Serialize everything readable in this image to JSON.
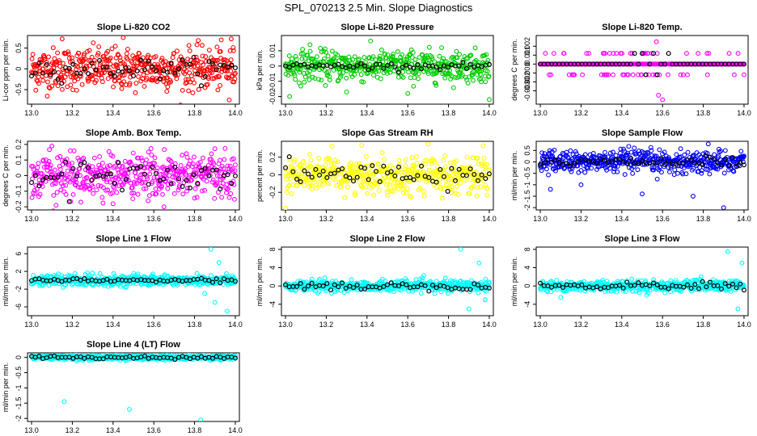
{
  "title": "SPL_070213  2.5 Min. Slope Diagnostics",
  "chart_data": [
    {
      "type": "scatter",
      "title": "Slope Li-820 CO2",
      "ylabel": "Li-cor ppm per min.",
      "color": "#ff0000",
      "xlim": [
        12.98,
        14.02
      ],
      "ylim": [
        -0.85,
        0.8
      ],
      "xticks": [
        13.0,
        13.2,
        13.4,
        13.6,
        13.8,
        14.0
      ],
      "yticks": [
        -0.5,
        0.0,
        0.5
      ],
      "spread": 0.25,
      "outliers": [
        [
          13.15,
          0.72
        ],
        [
          13.45,
          0.75
        ],
        [
          13.98,
          0.72
        ],
        [
          13.97,
          -0.75
        ]
      ],
      "black_spread": 0.12
    },
    {
      "type": "scatter",
      "title": "Slope Li-820 Pressure",
      "ylabel": "kPa per min.",
      "color": "#00cc00",
      "xlim": [
        12.98,
        14.02
      ],
      "ylim": [
        -0.025,
        0.02
      ],
      "xticks": [
        13.0,
        13.2,
        13.4,
        13.6,
        13.8,
        14.0
      ],
      "yticks": [
        -0.02,
        -0.01,
        0.0,
        0.01
      ],
      "spread": 0.005,
      "outliers": [
        [
          13.12,
          0.014
        ],
        [
          13.02,
          -0.02
        ],
        [
          13.3,
          -0.017
        ],
        [
          13.6,
          -0.018
        ],
        [
          14.0,
          -0.022
        ]
      ],
      "black_spread": 0.001
    },
    {
      "type": "scatter",
      "title": "Slope Li-820 Temp.",
      "ylabel": "degrees C per min.",
      "color": "#ff00ff",
      "xlim": [
        12.98,
        14.02
      ],
      "ylim": [
        -0.0045,
        0.0032
      ],
      "xticks": [
        13.0,
        13.2,
        13.4,
        13.6,
        13.8,
        14.0
      ],
      "yticks": [
        -0.003,
        -0.002,
        -0.001,
        0.0,
        0.001,
        0.002
      ],
      "spread": 0.0,
      "levels": [
        0.0,
        0.0,
        0.0,
        0.0,
        0.0,
        0.0,
        0.0012,
        -0.0012
      ],
      "outliers": [
        [
          13.57,
          0.0025
        ],
        [
          13.58,
          -0.0035
        ],
        [
          13.6,
          -0.004
        ]
      ],
      "black_spread": 0.0
    },
    {
      "type": "scatter",
      "title": "Slope Amb. Box Temp.",
      "ylabel": "degrees C per min.",
      "color": "#ff00ff",
      "xlim": [
        12.98,
        14.02
      ],
      "ylim": [
        -0.22,
        0.22
      ],
      "xticks": [
        13.0,
        13.2,
        13.4,
        13.6,
        13.8,
        14.0
      ],
      "yticks": [
        -0.2,
        -0.1,
        0.0,
        0.1,
        0.2
      ],
      "spread": 0.07,
      "outliers": [
        [
          13.12,
          -0.19
        ],
        [
          13.4,
          -0.18
        ],
        [
          13.65,
          -0.2
        ],
        [
          13.1,
          0.19
        ]
      ],
      "black_spread": 0.05
    },
    {
      "type": "scatter",
      "title": "Slope Gas Stream RH",
      "ylabel": "percent per min.",
      "color": "#ffff00",
      "xlim": [
        12.98,
        14.02
      ],
      "ylim": [
        -0.4,
        0.38
      ],
      "xticks": [
        13.0,
        13.2,
        13.4,
        13.6,
        13.8,
        14.0
      ],
      "yticks": [
        -0.2,
        0.0,
        0.2
      ],
      "spread": 0.1,
      "outliers": [
        [
          13.0,
          -0.38
        ],
        [
          13.7,
          0.35
        ],
        [
          13.97,
          0.33
        ]
      ],
      "black_spread": 0.06
    },
    {
      "type": "scatter",
      "title": "Slope Sample Flow",
      "ylabel": "ml/min per min.",
      "color": "#0000ff",
      "xlim": [
        12.98,
        14.02
      ],
      "ylim": [
        -2.1,
        0.9
      ],
      "xticks": [
        13.0,
        13.2,
        13.4,
        13.6,
        13.8,
        14.0
      ],
      "yticks": [
        -2.0,
        -1.5,
        -1.0,
        -0.5,
        0.0,
        0.5
      ],
      "spread": 0.25,
      "outliers": [
        [
          13.05,
          -1.2
        ],
        [
          13.2,
          -1.0
        ],
        [
          13.5,
          -1.4
        ],
        [
          13.9,
          -2.0
        ],
        [
          13.75,
          -1.5
        ]
      ],
      "black_spread": 0.1
    },
    {
      "type": "scatter",
      "title": "Slope Line 1 Flow",
      "ylabel": "ml/min per min.",
      "color": "#00ffff",
      "xlim": [
        12.98,
        14.02
      ],
      "ylim": [
        -8,
        7.5
      ],
      "xticks": [
        13.0,
        13.2,
        13.4,
        13.6,
        13.8,
        14.0
      ],
      "yticks": [
        -6,
        -2,
        2,
        6
      ],
      "spread": 0.6,
      "outliers": [
        [
          13.88,
          7
        ],
        [
          13.9,
          -5
        ],
        [
          13.96,
          -7
        ],
        [
          13.92,
          4
        ],
        [
          13.85,
          -3
        ]
      ],
      "black_spread": 0.3
    },
    {
      "type": "scatter",
      "title": "Slope Line 2 Flow",
      "ylabel": "ml/min per min.",
      "color": "#00ffff",
      "xlim": [
        12.98,
        14.02
      ],
      "ylim": [
        -6.5,
        8.5
      ],
      "xticks": [
        13.0,
        13.2,
        13.4,
        13.6,
        13.8,
        14.0
      ],
      "yticks": [
        -4,
        0,
        4,
        8
      ],
      "spread": 0.6,
      "outliers": [
        [
          13.86,
          8
        ],
        [
          13.9,
          -5
        ],
        [
          13.95,
          5
        ],
        [
          13.98,
          -3
        ]
      ],
      "black_spread": 0.4
    },
    {
      "type": "scatter",
      "title": "Slope Line 3 Flow",
      "ylabel": "ml/min per min.",
      "color": "#00ffff",
      "xlim": [
        12.98,
        14.02
      ],
      "ylim": [
        -6.5,
        8.5
      ],
      "xticks": [
        13.0,
        13.2,
        13.4,
        13.6,
        13.8,
        14.0
      ],
      "yticks": [
        -4,
        0,
        4,
        8
      ],
      "spread": 0.6,
      "outliers": [
        [
          13.92,
          7.5
        ],
        [
          13.97,
          -5
        ],
        [
          13.99,
          5
        ],
        [
          13.1,
          -2.5
        ]
      ],
      "black_spread": 0.4
    },
    {
      "type": "scatter",
      "title": "Slope Line 4 (LT) Flow",
      "ylabel": "ml/min per min.",
      "color": "#00ffff",
      "xlim": [
        12.98,
        14.02
      ],
      "ylim": [
        -2.1,
        0.15
      ],
      "xticks": [
        13.0,
        13.2,
        13.4,
        13.6,
        13.8,
        14.0
      ],
      "yticks": [
        -2.0,
        -1.5,
        -1.0,
        -0.5,
        0.0
      ],
      "spread": 0.04,
      "outliers": [
        [
          13.16,
          -1.45
        ],
        [
          13.48,
          -1.7
        ],
        [
          13.83,
          -2.05
        ]
      ],
      "black_spread": 0.03
    }
  ]
}
